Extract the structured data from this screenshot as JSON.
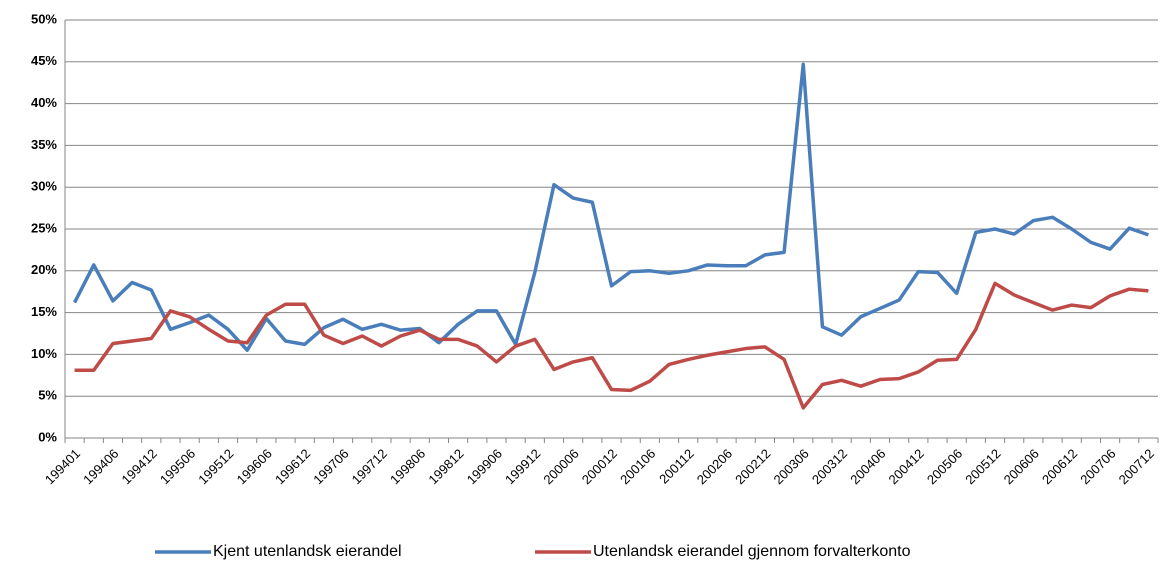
{
  "chart_data": {
    "type": "line",
    "categories": [
      "199401",
      null,
      "199406",
      null,
      "199412",
      null,
      "199506",
      null,
      "199512",
      null,
      "199606",
      null,
      "199612",
      null,
      "199706",
      null,
      "199712",
      null,
      "199806",
      null,
      "199812",
      null,
      "199906",
      null,
      "199912",
      null,
      "200006",
      null,
      "200012",
      null,
      "200106",
      null,
      "200112",
      null,
      "200206",
      null,
      "200212",
      null,
      "200306",
      null,
      "200312",
      null,
      "200406",
      null,
      "200412",
      null,
      "200506",
      null,
      "200512",
      null,
      "200606",
      null,
      "200612",
      null,
      "200706",
      null,
      "200712"
    ],
    "series": [
      {
        "name": "Kjent utenlandsk eierandel",
        "color": "#4a7ebb",
        "values": [
          16.2,
          20.7,
          16.4,
          18.6,
          17.7,
          13.0,
          13.8,
          14.7,
          13.0,
          10.5,
          14.3,
          11.6,
          11.2,
          13.2,
          14.2,
          13.0,
          13.6,
          12.9,
          13.1,
          11.4,
          13.6,
          15.2,
          15.2,
          11.2,
          19.8,
          30.3,
          28.7,
          28.2,
          18.2,
          19.9,
          20.0,
          19.7,
          20.0,
          20.7,
          20.6,
          20.6,
          21.9,
          22.2,
          44.7,
          13.3,
          12.3,
          14.5,
          15.5,
          16.5,
          19.9,
          19.8,
          17.3,
          24.6,
          25.0,
          24.4,
          26.0,
          26.4,
          25.0,
          23.4,
          22.6,
          25.1,
          24.3
        ]
      },
      {
        "name": "Utenlandsk eierandel gjennom forvalterkonto",
        "color": "#be4b48",
        "values": [
          8.1,
          8.1,
          11.3,
          11.6,
          11.9,
          15.2,
          14.5,
          13.0,
          11.6,
          11.4,
          14.7,
          16.0,
          16.0,
          12.3,
          11.3,
          12.2,
          11.0,
          12.2,
          12.9,
          11.8,
          11.8,
          11.0,
          9.1,
          11.0,
          11.8,
          8.2,
          9.1,
          9.6,
          5.8,
          5.7,
          6.8,
          8.8,
          9.4,
          9.9,
          10.3,
          10.7,
          10.9,
          9.4,
          3.6,
          6.4,
          6.9,
          6.2,
          7.0,
          7.1,
          7.9,
          9.3,
          9.4,
          13.0,
          18.5,
          17.1,
          16.2,
          15.3,
          15.9,
          15.6,
          17.0,
          17.8,
          17.6
        ]
      }
    ],
    "ylim": [
      0,
      50
    ],
    "yticks": [
      {
        "value": 0,
        "label": "0%"
      },
      {
        "value": 5,
        "label": "5%"
      },
      {
        "value": 10,
        "label": "10%"
      },
      {
        "value": 15,
        "label": "15%"
      },
      {
        "value": 20,
        "label": "20%"
      },
      {
        "value": 25,
        "label": "25%"
      },
      {
        "value": 30,
        "label": "30%"
      },
      {
        "value": 35,
        "label": "35%"
      },
      {
        "value": 40,
        "label": "40%"
      },
      {
        "value": 45,
        "label": "45%"
      },
      {
        "value": 50,
        "label": "50%"
      }
    ],
    "grid": true,
    "legend": "bottom"
  }
}
